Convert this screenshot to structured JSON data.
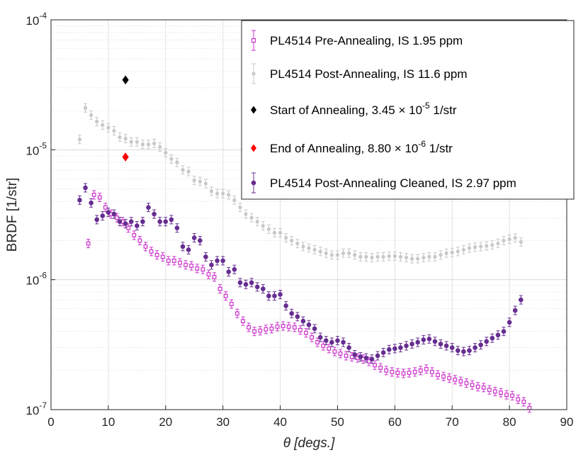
{
  "chart_data": {
    "type": "scatter",
    "title": "",
    "xlabel": "θ  [degs.]",
    "ylabel": "BRDF [1/str]",
    "xlim": [
      0,
      90
    ],
    "ylim_exponent": [
      -7,
      -4
    ],
    "yscale": "log",
    "x_ticks": [
      "0",
      "10",
      "20",
      "30",
      "40",
      "50",
      "60",
      "70",
      "80",
      "90"
    ],
    "y_ticks": [
      {
        "base": "10",
        "exp": "-7"
      },
      {
        "base": "10",
        "exp": "-6"
      },
      {
        "base": "10",
        "exp": "-5"
      },
      {
        "base": "10",
        "exp": "-4"
      }
    ],
    "grid": true,
    "legend_position": "top-right",
    "legend": [
      {
        "series": "pre",
        "text": "PL4514 Pre-Annealing, IS 1.95 ppm"
      },
      {
        "series": "post",
        "text": "PL4514 Post-Annealing, IS 11.6 ppm"
      },
      {
        "series": "start",
        "text": "Start of Annealing, 3.45 × 10",
        "sup": "-5",
        "suffix": " 1/str"
      },
      {
        "series": "end",
        "text": "End of Annealing, 8.80 × 10",
        "sup": "-6",
        "suffix": " 1/str"
      },
      {
        "series": "clean",
        "text": "PL4514 Post-Annealing Cleaned, IS 2.97 ppm"
      }
    ],
    "series": [
      {
        "id": "post",
        "name": "PL4514 Post-Annealing, IS 11.6 ppm",
        "color": "#c8c8c8",
        "marker": "dot",
        "points": [
          [
            5,
            1.2e-05
          ],
          [
            6,
            2.1e-05
          ],
          [
            7,
            1.85e-05
          ],
          [
            8,
            1.65e-05
          ],
          [
            9,
            1.55e-05
          ],
          [
            10,
            1.48e-05
          ],
          [
            11,
            1.4e-05
          ],
          [
            12,
            1.25e-05
          ],
          [
            13,
            1.22e-05
          ],
          [
            14,
            1.15e-05
          ],
          [
            15,
            1.15e-05
          ],
          [
            16,
            1.1e-05
          ],
          [
            17,
            1.1e-05
          ],
          [
            18,
            1.12e-05
          ],
          [
            19,
            1.05e-05
          ],
          [
            20,
            9.5e-06
          ],
          [
            21,
            8.5e-06
          ],
          [
            22,
            8e-06
          ],
          [
            23,
            7e-06
          ],
          [
            24,
            6.8e-06
          ],
          [
            25,
            5.8e-06
          ],
          [
            26,
            5.7e-06
          ],
          [
            27,
            5.5e-06
          ],
          [
            28,
            4.8e-06
          ],
          [
            29,
            4.6e-06
          ],
          [
            30,
            4.6e-06
          ],
          [
            31,
            4.5e-06
          ],
          [
            32,
            4.1e-06
          ],
          [
            33,
            3.6e-06
          ],
          [
            34,
            3.2e-06
          ],
          [
            35,
            3e-06
          ],
          [
            36,
            2.8e-06
          ],
          [
            37,
            2.6e-06
          ],
          [
            38,
            2.45e-06
          ],
          [
            39,
            2.3e-06
          ],
          [
            40,
            2.3e-06
          ],
          [
            41,
            2.1e-06
          ],
          [
            42,
            2e-06
          ],
          [
            43,
            1.9e-06
          ],
          [
            44,
            1.8e-06
          ],
          [
            45,
            1.75e-06
          ],
          [
            46,
            1.7e-06
          ],
          [
            47,
            1.65e-06
          ],
          [
            48,
            1.6e-06
          ],
          [
            49,
            1.55e-06
          ],
          [
            50,
            1.55e-06
          ],
          [
            51,
            1.6e-06
          ],
          [
            52,
            1.6e-06
          ],
          [
            53,
            1.55e-06
          ],
          [
            54,
            1.5e-06
          ],
          [
            55,
            1.5e-06
          ],
          [
            56,
            1.48e-06
          ],
          [
            57,
            1.5e-06
          ],
          [
            58,
            1.5e-06
          ],
          [
            59,
            1.52e-06
          ],
          [
            60,
            1.52e-06
          ],
          [
            61,
            1.5e-06
          ],
          [
            62,
            1.48e-06
          ],
          [
            63,
            1.45e-06
          ],
          [
            64,
            1.45e-06
          ],
          [
            65,
            1.48e-06
          ],
          [
            66,
            1.5e-06
          ],
          [
            67,
            1.5e-06
          ],
          [
            68,
            1.55e-06
          ],
          [
            69,
            1.6e-06
          ],
          [
            70,
            1.62e-06
          ],
          [
            71,
            1.65e-06
          ],
          [
            72,
            1.7e-06
          ],
          [
            73,
            1.75e-06
          ],
          [
            74,
            1.78e-06
          ],
          [
            75,
            1.8e-06
          ],
          [
            76,
            1.82e-06
          ],
          [
            77,
            1.85e-06
          ],
          [
            78,
            1.9e-06
          ],
          [
            79,
            2e-06
          ],
          [
            80,
            2.05e-06
          ],
          [
            81,
            2.1e-06
          ],
          [
            82,
            1.95e-06
          ]
        ]
      },
      {
        "id": "pre",
        "name": "PL4514 Pre-Annealing, IS 1.95 ppm",
        "color": "#cc33cc",
        "marker": "square",
        "points": [
          [
            6.5,
            1.9e-06
          ],
          [
            7.5,
            4.5e-06
          ],
          [
            8.5,
            4.3e-06
          ],
          [
            9.5,
            3.6e-06
          ],
          [
            10.5,
            3.2e-06
          ],
          [
            11.5,
            3e-06
          ],
          [
            12.5,
            2.8e-06
          ],
          [
            13.5,
            2.5e-06
          ],
          [
            14.5,
            2.2e-06
          ],
          [
            15.5,
            2e-06
          ],
          [
            16.5,
            1.8e-06
          ],
          [
            17.5,
            1.65e-06
          ],
          [
            18.5,
            1.55e-06
          ],
          [
            19.5,
            1.5e-06
          ],
          [
            20.5,
            1.4e-06
          ],
          [
            21.5,
            1.4e-06
          ],
          [
            22.5,
            1.35e-06
          ],
          [
            23.5,
            1.3e-06
          ],
          [
            24.5,
            1.28e-06
          ],
          [
            25.5,
            1.22e-06
          ],
          [
            26.5,
            1.2e-06
          ],
          [
            27.5,
            1.1e-06
          ],
          [
            28.5,
            1.05e-06
          ],
          [
            29.5,
            8.5e-07
          ],
          [
            30.5,
            7.5e-07
          ],
          [
            31.5,
            6.5e-07
          ],
          [
            32.5,
            5.5e-07
          ],
          [
            33.5,
            4.8e-07
          ],
          [
            34.5,
            4.3e-07
          ],
          [
            35.5,
            4e-07
          ],
          [
            36.5,
            4.05e-07
          ],
          [
            37.5,
            4.15e-07
          ],
          [
            38.5,
            4.2e-07
          ],
          [
            39.5,
            4.35e-07
          ],
          [
            40.5,
            4.4e-07
          ],
          [
            41.5,
            4.35e-07
          ],
          [
            42.5,
            4.3e-07
          ],
          [
            43.5,
            4.1e-07
          ],
          [
            44.5,
            3.9e-07
          ],
          [
            45.5,
            3.6e-07
          ],
          [
            46.5,
            3.3e-07
          ],
          [
            47.5,
            3.1e-07
          ],
          [
            48.5,
            2.95e-07
          ],
          [
            49.5,
            2.8e-07
          ],
          [
            50.5,
            2.7e-07
          ],
          [
            51.5,
            2.6e-07
          ],
          [
            52.5,
            2.55e-07
          ],
          [
            53.5,
            2.5e-07
          ],
          [
            54.5,
            2.45e-07
          ],
          [
            55.5,
            2.35e-07
          ],
          [
            56.5,
            2.2e-07
          ],
          [
            57.5,
            2.1e-07
          ],
          [
            58.5,
            2e-07
          ],
          [
            59.5,
            1.95e-07
          ],
          [
            60.5,
            1.92e-07
          ],
          [
            61.5,
            1.9e-07
          ],
          [
            62.5,
            1.92e-07
          ],
          [
            63.5,
            1.95e-07
          ],
          [
            64.5,
            2e-07
          ],
          [
            65.5,
            2.05e-07
          ],
          [
            66.5,
            1.95e-07
          ],
          [
            67.5,
            1.85e-07
          ],
          [
            68.5,
            1.8e-07
          ],
          [
            69.5,
            1.75e-07
          ],
          [
            70.5,
            1.7e-07
          ],
          [
            71.5,
            1.65e-07
          ],
          [
            72.5,
            1.6e-07
          ],
          [
            73.5,
            1.55e-07
          ],
          [
            74.5,
            1.5e-07
          ],
          [
            75.5,
            1.48e-07
          ],
          [
            76.5,
            1.42e-07
          ],
          [
            77.5,
            1.38e-07
          ],
          [
            78.5,
            1.35e-07
          ],
          [
            79.5,
            1.3e-07
          ],
          [
            80.5,
            1.28e-07
          ],
          [
            81.5,
            1.2e-07
          ],
          [
            82.5,
            1.15e-07
          ],
          [
            83.5,
            1.03e-07
          ]
        ]
      },
      {
        "id": "clean",
        "name": "PL4514 Post-Annealing Cleaned, IS 2.97 ppm",
        "color": "#662d91",
        "marker": "dot",
        "points": [
          [
            5,
            4.1e-06
          ],
          [
            6,
            5.1e-06
          ],
          [
            7,
            3.9e-06
          ],
          [
            8,
            2.9e-06
          ],
          [
            9,
            3.1e-06
          ],
          [
            10,
            3.3e-06
          ],
          [
            11,
            3.2e-06
          ],
          [
            12,
            2.8e-06
          ],
          [
            13,
            2.7e-06
          ],
          [
            14,
            2.8e-06
          ],
          [
            15,
            2.6e-06
          ],
          [
            16,
            2.8e-06
          ],
          [
            17,
            3.6e-06
          ],
          [
            18,
            3.2e-06
          ],
          [
            19,
            2.8e-06
          ],
          [
            20,
            2.8e-06
          ],
          [
            21,
            2.9e-06
          ],
          [
            22,
            2.5e-06
          ],
          [
            23,
            1.8e-06
          ],
          [
            24,
            1.7e-06
          ],
          [
            25,
            2.1e-06
          ],
          [
            26,
            2e-06
          ],
          [
            27,
            1.5e-06
          ],
          [
            28,
            1.3e-06
          ],
          [
            29,
            1.4e-06
          ],
          [
            30,
            1.4e-06
          ],
          [
            31,
            1.15e-06
          ],
          [
            32,
            1.2e-06
          ],
          [
            33,
            9.5e-07
          ],
          [
            34,
            9.2e-07
          ],
          [
            35,
            9.5e-07
          ],
          [
            36,
            8.8e-07
          ],
          [
            37,
            8.5e-07
          ],
          [
            38,
            7.5e-07
          ],
          [
            39,
            7.5e-07
          ],
          [
            40,
            7.7e-07
          ],
          [
            41,
            6.3e-07
          ],
          [
            42,
            5.5e-07
          ],
          [
            43,
            5.2e-07
          ],
          [
            44,
            4.8e-07
          ],
          [
            45,
            4.5e-07
          ],
          [
            46,
            4.2e-07
          ],
          [
            47,
            3.6e-07
          ],
          [
            48,
            3.4e-07
          ],
          [
            49,
            3.3e-07
          ],
          [
            50,
            3.4e-07
          ],
          [
            51,
            3.3e-07
          ],
          [
            52,
            3e-07
          ],
          [
            53,
            2.65e-07
          ],
          [
            54,
            2.55e-07
          ],
          [
            55,
            2.5e-07
          ],
          [
            56,
            2.45e-07
          ],
          [
            57,
            2.6e-07
          ],
          [
            58,
            2.75e-07
          ],
          [
            59,
            2.9e-07
          ],
          [
            60,
            2.95e-07
          ],
          [
            61,
            3e-07
          ],
          [
            62,
            3.1e-07
          ],
          [
            63,
            3.2e-07
          ],
          [
            64,
            3.3e-07
          ],
          [
            65,
            3.45e-07
          ],
          [
            66,
            3.5e-07
          ],
          [
            67,
            3.35e-07
          ],
          [
            68,
            3.2e-07
          ],
          [
            69,
            3.1e-07
          ],
          [
            70,
            3e-07
          ],
          [
            71,
            2.85e-07
          ],
          [
            72,
            2.8e-07
          ],
          [
            73,
            2.85e-07
          ],
          [
            74,
            3e-07
          ],
          [
            75,
            3.15e-07
          ],
          [
            76,
            3.35e-07
          ],
          [
            77,
            3.55e-07
          ],
          [
            78,
            3.75e-07
          ],
          [
            79,
            4e-07
          ],
          [
            80,
            4.7e-07
          ],
          [
            81,
            5.8e-07
          ],
          [
            82,
            7e-07
          ]
        ]
      },
      {
        "id": "start",
        "name": "Start of Annealing",
        "color": "#000000",
        "marker": "diamond",
        "points": [
          [
            13,
            3.45e-05
          ]
        ]
      },
      {
        "id": "end",
        "name": "End of Annealing",
        "color": "#ff0000",
        "marker": "diamond",
        "points": [
          [
            13,
            8.8e-06
          ]
        ]
      }
    ]
  }
}
